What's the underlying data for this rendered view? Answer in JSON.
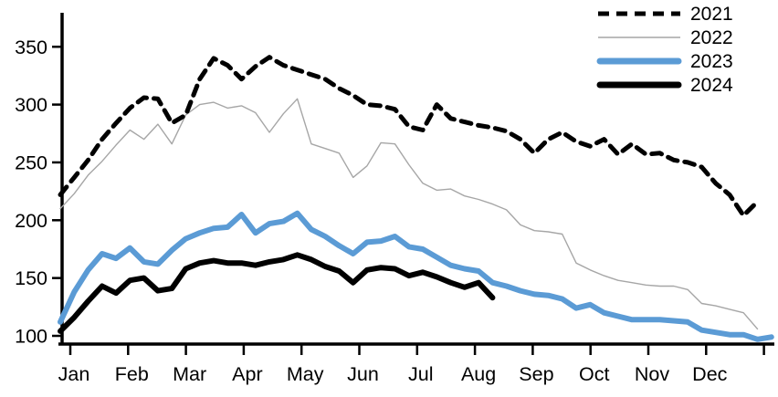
{
  "figure": {
    "background": "#ffffff",
    "axis_color": "#000000"
  },
  "chart_data": {
    "type": "line",
    "title": "",
    "x_unit": "weekly points, Jan through Dec",
    "x_axis": {
      "tick_labels": [
        "Jan",
        "Feb",
        "Mar",
        "Apr",
        "May",
        "Jun",
        "Jul",
        "Aug",
        "Sep",
        "Oct",
        "Nov",
        "Dec"
      ]
    },
    "y_axis": {
      "ticks": [
        100,
        150,
        200,
        250,
        300,
        350
      ],
      "range": [
        92,
        362
      ],
      "grid": false
    },
    "legend": {
      "position": "top-right",
      "entries": [
        "2021",
        "2022",
        "2023",
        "2024"
      ]
    },
    "series": [
      {
        "name": "2021",
        "color": "#000000",
        "style": "dashed",
        "width": 5,
        "values": [
          222,
          237,
          252,
          270,
          284,
          297,
          306,
          305,
          284,
          291,
          322,
          340,
          334,
          322,
          333,
          341,
          334,
          330,
          326,
          322,
          314,
          308,
          300,
          299,
          296,
          281,
          278,
          300,
          288,
          285,
          282,
          280,
          277,
          270,
          258,
          270,
          276,
          268,
          264,
          270,
          257,
          266,
          257,
          258,
          252,
          250,
          246,
          232,
          222,
          204,
          216
        ]
      },
      {
        "name": "2022",
        "color": "#a6a6a6",
        "style": "solid",
        "width": 1.4,
        "values": [
          210,
          223,
          239,
          251,
          265,
          278,
          270,
          283,
          266,
          291,
          300,
          302,
          297,
          299,
          293,
          276,
          292,
          305,
          266,
          262,
          258,
          237,
          247,
          267,
          266,
          248,
          232,
          226,
          227,
          221,
          218,
          214,
          209,
          196,
          191,
          190,
          188,
          163,
          157,
          152,
          148,
          146,
          144,
          143,
          143,
          140,
          128,
          126,
          123,
          120,
          106
        ]
      },
      {
        "name": "2023",
        "color": "#5B9BD5",
        "style": "solid",
        "width": 6,
        "values": [
          112,
          138,
          157,
          171,
          167,
          176,
          164,
          162,
          174,
          184,
          189,
          193,
          194,
          205,
          189,
          197,
          199,
          206,
          192,
          186,
          178,
          171,
          181,
          182,
          186,
          177,
          175,
          168,
          161,
          158,
          156,
          146,
          143,
          139,
          136,
          135,
          132,
          124,
          127,
          120,
          117,
          114,
          114,
          114,
          113,
          112,
          105,
          103,
          101,
          101,
          97,
          99
        ]
      },
      {
        "name": "2024",
        "color": "#000000",
        "style": "solid",
        "width": 6,
        "values": [
          104,
          116,
          130,
          143,
          137,
          148,
          150,
          139,
          141,
          158,
          163,
          165,
          163,
          163,
          161,
          164,
          166,
          170,
          166,
          160,
          156,
          146,
          157,
          159,
          158,
          152,
          155,
          151,
          146,
          142,
          146,
          133
        ]
      }
    ]
  }
}
